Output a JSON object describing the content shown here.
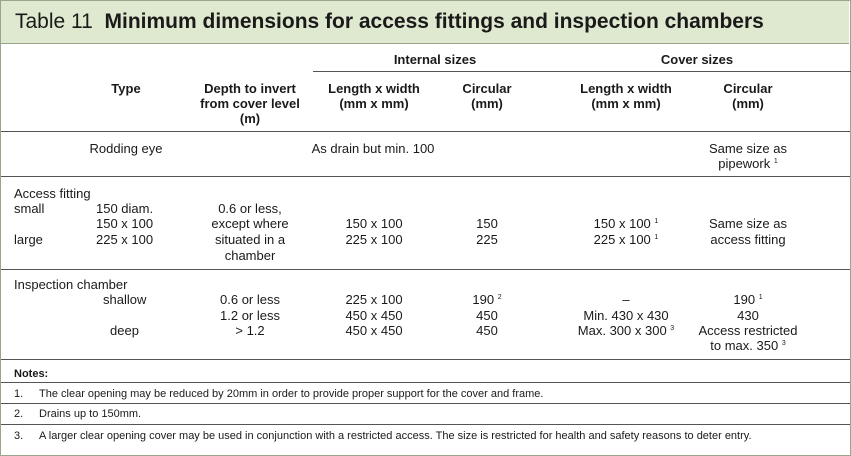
{
  "title": {
    "number": "Table 11",
    "text": "Minimum dimensions for access fittings and inspection chambers"
  },
  "groups": {
    "internal": "Internal sizes",
    "cover": "Cover sizes"
  },
  "headers": {
    "type": "Type",
    "depth": [
      "Depth to invert",
      "from cover level",
      "(m)"
    ],
    "int_lw": [
      "Length x width",
      "(mm x mm)"
    ],
    "int_circ": [
      "Circular",
      "(mm)"
    ],
    "cov_lw": [
      "Length x width",
      "(mm x mm)"
    ],
    "cov_circ": [
      "Circular",
      "(mm)"
    ]
  },
  "rodding": {
    "type": "Rodding eye",
    "internal": "As drain but min. 100",
    "cover_circ": [
      "Same size as",
      "pipework"
    ],
    "cover_circ_note": "1"
  },
  "access": {
    "heading": "Access fitting",
    "small_label": "small",
    "small_diam": "150 diam.",
    "small_rect": "150 x 100",
    "large_label": "large",
    "large_rect": "225 x 100",
    "depth": [
      "0.6 or less,",
      "except where",
      "situated in a",
      "chamber"
    ],
    "int_lw": [
      "150 x 100",
      "225 x 100"
    ],
    "int_circ": [
      "150",
      "225"
    ],
    "cov_lw": [
      "150 x 100",
      "225 x 100"
    ],
    "cov_lw_note": "1",
    "cov_circ": [
      "Same size as",
      "access fitting"
    ]
  },
  "inspection": {
    "heading": "Inspection chamber",
    "shallow": "shallow",
    "deep": "deep",
    "depth": [
      "0.6 or less",
      "1.2 or less",
      "> 1.2"
    ],
    "int_lw": [
      "225 x 100",
      "450 x 450",
      "450 x 450"
    ],
    "int_circ": [
      "190",
      "450",
      "450"
    ],
    "int_circ_note": "2",
    "cov_lw": [
      "–",
      "Min. 430 x 430",
      "Max. 300 x 300"
    ],
    "cov_lw_note": "3",
    "cov_circ": [
      "190",
      "430",
      "Access restricted",
      "to max. 350"
    ],
    "cov_circ_note_1": "1",
    "cov_circ_note_3": "3"
  },
  "notes": {
    "heading": "Notes:",
    "items": [
      {
        "num": "1.",
        "text": "The clear opening may be reduced by 20mm in order to provide proper support for the cover and frame."
      },
      {
        "num": "2.",
        "text": "Drains up to 150mm."
      },
      {
        "num": "3.",
        "text": "A larger clear opening cover may be used in conjunction with a restricted access. The size is restricted for health and safety reasons to deter entry."
      }
    ]
  }
}
